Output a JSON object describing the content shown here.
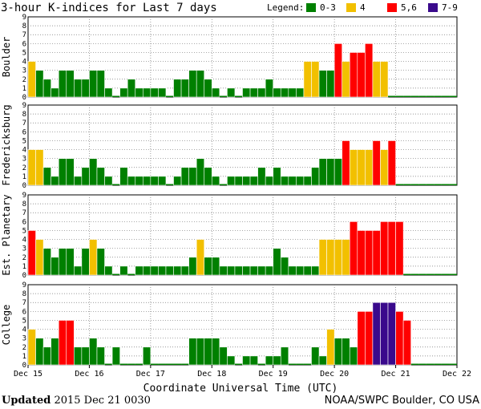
{
  "colors": {
    "low": "#008000",
    "mid": "#f2c000",
    "high": "#ff0000",
    "severe": "#3a0a8c"
  },
  "chart_data": {
    "type": "bar",
    "title": "3-hour K-indices for Last 7 days",
    "legend": {
      "label": "Legend:",
      "placement": "top-right",
      "items": [
        {
          "label": "0-3",
          "color": "low"
        },
        {
          "label": "4",
          "color": "mid"
        },
        {
          "label": "5,6",
          "color": "high"
        },
        {
          "label": "7-9",
          "color": "severe"
        }
      ]
    },
    "xlabel": "Coordinate Universal Time (UTC)",
    "x_ticks": [
      "Dec 15",
      "Dec 16",
      "Dec 17",
      "Dec 18",
      "Dec 19",
      "Dec 20",
      "Dec 21",
      "Dec 22"
    ],
    "ylim": [
      0,
      9
    ],
    "y_ticks": [
      "0",
      "1",
      "2",
      "3",
      "4",
      "5",
      "6",
      "7",
      "8",
      "9"
    ],
    "grid": true,
    "series": [
      {
        "name": "Boulder",
        "values": [
          4,
          3,
          2,
          1,
          3,
          3,
          2,
          2,
          3,
          3,
          1,
          0,
          1,
          2,
          1,
          1,
          1,
          1,
          0,
          2,
          2,
          3,
          3,
          2,
          1,
          0,
          1,
          0,
          1,
          1,
          1,
          2,
          1,
          1,
          1,
          1,
          4,
          4,
          3,
          3,
          6,
          4,
          5,
          5,
          6,
          4,
          4,
          0,
          0,
          0,
          0,
          0,
          0,
          0,
          0,
          0
        ]
      },
      {
        "name": "Fredericksburg",
        "values": [
          4,
          4,
          2,
          1,
          3,
          3,
          1,
          2,
          3,
          2,
          1,
          0,
          2,
          1,
          1,
          1,
          1,
          1,
          0,
          1,
          2,
          2,
          3,
          2,
          1,
          0,
          1,
          1,
          1,
          1,
          2,
          1,
          2,
          1,
          1,
          1,
          1,
          2,
          3,
          3,
          3,
          5,
          4,
          4,
          4,
          5,
          4,
          5,
          0,
          0,
          0,
          0,
          0,
          0,
          0,
          0
        ]
      },
      {
        "name": "Est. Planetary",
        "values": [
          5,
          4,
          3,
          2,
          3,
          3,
          1,
          3,
          4,
          3,
          1,
          0,
          1,
          0,
          1,
          1,
          1,
          1,
          1,
          1,
          1,
          2,
          4,
          2,
          2,
          1,
          1,
          1,
          1,
          1,
          1,
          1,
          3,
          2,
          1,
          1,
          1,
          1,
          4,
          4,
          4,
          4,
          6,
          5,
          5,
          5,
          6,
          6,
          6,
          0,
          0,
          0,
          0,
          0,
          0,
          0
        ]
      },
      {
        "name": "College",
        "values": [
          4,
          3,
          2,
          3,
          5,
          5,
          2,
          2,
          3,
          2,
          0,
          2,
          0,
          0,
          0,
          2,
          0,
          0,
          0,
          0,
          0,
          3,
          3,
          3,
          3,
          2,
          1,
          0,
          1,
          1,
          0,
          1,
          1,
          2,
          0,
          0,
          0,
          2,
          1,
          4,
          3,
          3,
          2,
          6,
          6,
          7,
          7,
          7,
          6,
          5,
          0,
          0,
          0,
          0,
          0,
          0
        ]
      }
    ]
  },
  "footer": {
    "updated_label": "Updated",
    "updated_value": "2015 Dec 21 0030",
    "credit": "NOAA/SWPC Boulder, CO USA"
  }
}
